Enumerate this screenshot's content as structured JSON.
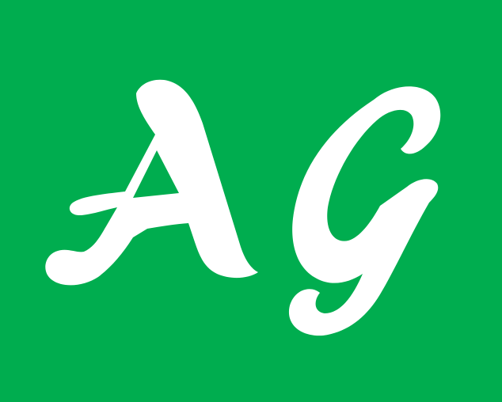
{
  "logo": {
    "text": "AG",
    "background_color": "#00ad4f",
    "glyph_color": "#ffffff"
  }
}
